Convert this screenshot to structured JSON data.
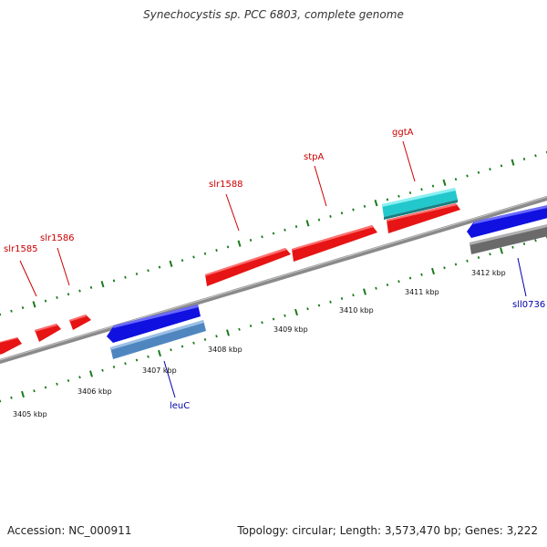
{
  "title": "Synechocystis sp. PCC 6803, complete genome",
  "footer": {
    "accession": "Accession: NC_000911",
    "topology": "Topology: circular; Length: 3,573,470 bp; Genes: 3,222"
  },
  "colors": {
    "backbone": "#8a8a8a",
    "forward_gene": "#e61414",
    "reverse_gene": "#1010e0",
    "rna_gene": "#22c8cc",
    "pseudo_gene_light": "#4f86c0",
    "other_gene": "#6a6a6a",
    "tick": "#1a7a1a",
    "forward_label": "#cc0000",
    "reverse_label": "#0000aa"
  },
  "kbp_labels": [
    "3405 kbp",
    "3406 kbp",
    "3407 kbp",
    "3408 kbp",
    "3409 kbp",
    "3410 kbp",
    "3411 kbp",
    "3412 kbp"
  ],
  "gene_labels": {
    "slr1585": "slr1585",
    "slr1586": "slr1586",
    "slr1588": "slr1588",
    "stpA": "stpA",
    "ggtA": "ggtA",
    "leuC": "leuC",
    "sll0736": "sll0736"
  }
}
